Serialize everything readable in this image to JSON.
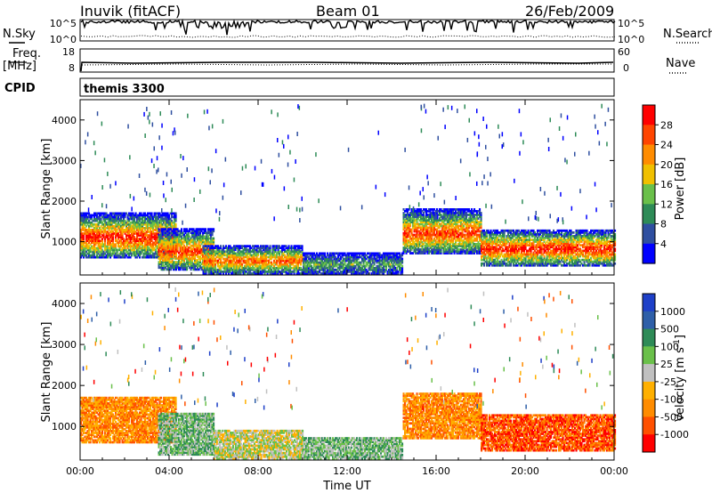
{
  "header": {
    "station": "Inuvik (fitACF)",
    "beam": "Beam 01",
    "date": "26/Feb/2009"
  },
  "aux_panels": {
    "nsky_label": "N.Sky",
    "nsearch_label": "N.Search",
    "freq_label_1": "Freq.",
    "freq_label_2": "[MHz]",
    "nave_label": "Nave",
    "cpid_label": "CPID",
    "cpid_value": "themis 3300",
    "noise_left_ticks": [
      "10^5",
      "10^0"
    ],
    "noise_right_ticks": [
      "10^5",
      "10^0"
    ],
    "freq_left_ticks": [
      "18",
      "8"
    ],
    "nave_right_ticks": [
      "60",
      "0"
    ]
  },
  "colors": {
    "power_scale": [
      "#0000ff",
      "#2f4fa0",
      "#2e8b57",
      "#6ac04a",
      "#f0c000",
      "#ff8c00",
      "#ff4500",
      "#ff0000"
    ],
    "velocity_scale": [
      "#1e40c8",
      "#2e5fa8",
      "#2e8b57",
      "#6ac04a",
      "#c0c0c0",
      "#ffb000",
      "#ff8c00",
      "#ff5000",
      "#ff0000"
    ]
  },
  "chart_data": [
    {
      "type": "heatmap",
      "title": "",
      "quantity": "Power",
      "xlabel": "",
      "ylabel": "Slant Range [km]",
      "x_ticks": [
        "00:00",
        "04:00",
        "08:00",
        "12:00",
        "16:00",
        "20:00",
        "00:00"
      ],
      "x_tick_hours": [
        0,
        4,
        8,
        12,
        16,
        20,
        24
      ],
      "xlim": [
        0,
        24
      ],
      "y_ticks": [
        1000,
        2000,
        3000,
        4000
      ],
      "ylim": [
        180,
        4500
      ],
      "colorbar_label": "Power [dB]",
      "colorbar_ticks": [
        "4",
        "8",
        "12",
        "16",
        "20",
        "24",
        "28"
      ],
      "colorbar_values": [
        4,
        8,
        12,
        16,
        20,
        24,
        28
      ],
      "colorbar_range": [
        0,
        32
      ],
      "echo_regions": [
        {
          "t_start": 0.0,
          "t_end": 4.3,
          "r_min": 600,
          "r_max": 1700,
          "peak_dB": 28
        },
        {
          "t_start": 3.5,
          "t_end": 6.0,
          "r_min": 300,
          "r_max": 1300,
          "peak_dB": 26
        },
        {
          "t_start": 5.5,
          "t_end": 10.0,
          "r_min": 200,
          "r_max": 900,
          "peak_dB": 24
        },
        {
          "t_start": 10.0,
          "t_end": 14.5,
          "r_min": 200,
          "r_max": 700,
          "peak_dB": 10
        },
        {
          "t_start": 14.5,
          "t_end": 18.0,
          "r_min": 700,
          "r_max": 1800,
          "peak_dB": 26
        },
        {
          "t_start": 18.0,
          "t_end": 24.0,
          "r_min": 400,
          "r_max": 1300,
          "peak_dB": 28
        }
      ]
    },
    {
      "type": "heatmap",
      "title": "",
      "quantity": "Velocity",
      "xlabel": "Time UT",
      "ylabel": "Slant Range [km]",
      "x_ticks": [
        "00:00",
        "04:00",
        "08:00",
        "12:00",
        "16:00",
        "20:00",
        "00:00"
      ],
      "x_tick_hours": [
        0,
        4,
        8,
        12,
        16,
        20,
        24
      ],
      "xlim": [
        0,
        24
      ],
      "y_ticks": [
        1000,
        2000,
        3000,
        4000
      ],
      "ylim": [
        180,
        4500
      ],
      "colorbar_label": "Velocity [m s^-1]",
      "colorbar_label_main": "Velocity [m s",
      "colorbar_label_sup": "-1",
      "colorbar_label_end": "]",
      "colorbar_ticks": [
        "1000",
        "500",
        "100",
        "25",
        "-25",
        "-100",
        "-500",
        "-1000"
      ],
      "echo_regions": [
        {
          "t_start": 0.0,
          "t_end": 4.3,
          "r_min": 600,
          "r_max": 1700,
          "velocity": -100
        },
        {
          "t_start": 3.5,
          "t_end": 6.0,
          "r_min": 300,
          "r_max": 1300,
          "velocity": 100
        },
        {
          "t_start": 6.0,
          "t_end": 10.0,
          "r_min": 200,
          "r_max": 900,
          "velocity": 0
        },
        {
          "t_start": 10.0,
          "t_end": 14.5,
          "r_min": 200,
          "r_max": 700,
          "velocity": 100
        },
        {
          "t_start": 14.5,
          "t_end": 18.0,
          "r_min": 700,
          "r_max": 1800,
          "velocity": -100
        },
        {
          "t_start": 18.0,
          "t_end": 24.0,
          "r_min": 400,
          "r_max": 1300,
          "velocity": -500
        }
      ]
    }
  ]
}
